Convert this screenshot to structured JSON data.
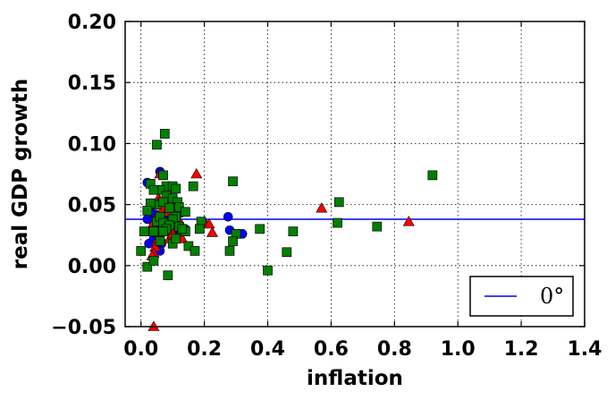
{
  "chart_data": {
    "type": "scatter",
    "xlabel": "inflation",
    "ylabel": "real GDP growth",
    "xlim": [
      -0.05,
      1.4
    ],
    "ylim": [
      -0.05,
      0.2
    ],
    "xticks": [
      0.0,
      0.2,
      0.4,
      0.6,
      0.8,
      1.0,
      1.2,
      1.4
    ],
    "yticks": [
      -0.05,
      0.0,
      0.05,
      0.1,
      0.15,
      0.2
    ],
    "xtick_labels": [
      "0.0",
      "0.2",
      "0.4",
      "0.6",
      "0.8",
      "1.0",
      "1.2",
      "1.4"
    ],
    "ytick_labels": [
      "−0.05",
      "0.00",
      "0.05",
      "0.10",
      "0.15",
      "0.20"
    ],
    "grid": true,
    "grid_style": "dotted",
    "legend_position": "lower right",
    "hline": {
      "y": 0.038,
      "color": "#0000ff",
      "label": "0°"
    },
    "series": [
      {
        "marker": "circle",
        "color": "#0000ff",
        "points": [
          [
            0.02,
            0.068
          ],
          [
            0.06,
            0.077
          ],
          [
            0.02,
            0.038
          ],
          [
            0.035,
            0.037
          ],
          [
            0.045,
            0.042
          ],
          [
            0.05,
            0.03
          ],
          [
            0.06,
            0.025
          ],
          [
            0.065,
            0.018
          ],
          [
            0.025,
            0.018
          ],
          [
            0.06,
            0.012
          ],
          [
            0.07,
            0.03
          ],
          [
            0.09,
            0.035
          ],
          [
            0.1,
            0.028
          ],
          [
            0.12,
            0.032
          ],
          [
            0.14,
            0.03
          ],
          [
            0.275,
            0.04
          ],
          [
            0.28,
            0.029
          ],
          [
            0.32,
            0.026
          ],
          [
            0.03,
            0.048
          ],
          [
            0.075,
            0.04
          ],
          [
            0.04,
            0.022
          ],
          [
            0.11,
            0.024
          ]
        ]
      },
      {
        "marker": "triangle",
        "color": "#ff0000",
        "points": [
          [
            0.06,
            0.075
          ],
          [
            0.055,
            0.055
          ],
          [
            0.06,
            0.053
          ],
          [
            0.065,
            0.05
          ],
          [
            0.07,
            0.047
          ],
          [
            0.08,
            0.044
          ],
          [
            0.05,
            0.04
          ],
          [
            0.04,
            0.035
          ],
          [
            0.045,
            0.03
          ],
          [
            0.05,
            0.027
          ],
          [
            0.06,
            0.024
          ],
          [
            0.05,
            0.02
          ],
          [
            0.045,
            0.015
          ],
          [
            0.04,
            0.01
          ],
          [
            0.035,
            0.008
          ],
          [
            0.07,
            0.032
          ],
          [
            0.08,
            0.028
          ],
          [
            0.09,
            0.022
          ],
          [
            0.1,
            0.026
          ],
          [
            0.11,
            0.031
          ],
          [
            0.115,
            0.043
          ],
          [
            0.12,
            0.037
          ],
          [
            0.13,
            0.03
          ],
          [
            0.13,
            0.022
          ],
          [
            0.175,
            0.075
          ],
          [
            0.2,
            0.036
          ],
          [
            0.215,
            0.034
          ],
          [
            0.225,
            0.027
          ],
          [
            0.57,
            0.047
          ],
          [
            0.845,
            0.036
          ],
          [
            0.04,
            -0.05
          ]
        ]
      },
      {
        "marker": "square",
        "color": "#008000",
        "points": [
          [
            0.075,
            0.108
          ],
          [
            0.05,
            0.099
          ],
          [
            0.07,
            0.074
          ],
          [
            0.165,
            0.065
          ],
          [
            0.29,
            0.069
          ],
          [
            0.92,
            0.074
          ],
          [
            0.03,
            0.067
          ],
          [
            0.08,
            0.065
          ],
          [
            0.1,
            0.065
          ],
          [
            0.11,
            0.063
          ],
          [
            0.06,
            0.062
          ],
          [
            0.04,
            0.062
          ],
          [
            0.08,
            0.057
          ],
          [
            0.1,
            0.055
          ],
          [
            0.115,
            0.052
          ],
          [
            0.05,
            0.05
          ],
          [
            0.07,
            0.052
          ],
          [
            0.03,
            0.051
          ],
          [
            0.12,
            0.048
          ],
          [
            0.14,
            0.044
          ],
          [
            0.09,
            0.047
          ],
          [
            0.11,
            0.04
          ],
          [
            0.1,
            0.038
          ],
          [
            0.05,
            0.036
          ],
          [
            0.06,
            0.04
          ],
          [
            0.07,
            0.035
          ],
          [
            0.09,
            0.033
          ],
          [
            0.12,
            0.032
          ],
          [
            0.14,
            0.028
          ],
          [
            0.08,
            0.03
          ],
          [
            0.04,
            0.028
          ],
          [
            0.01,
            0.028
          ],
          [
            0.06,
            0.02
          ],
          [
            0.1,
            0.018
          ],
          [
            0.15,
            0.016
          ],
          [
            0.19,
            0.036
          ],
          [
            0.185,
            0.03
          ],
          [
            0.17,
            0.012
          ],
          [
            0.0,
            0.012
          ],
          [
            0.02,
            -0.001
          ],
          [
            0.04,
            0.004
          ],
          [
            0.085,
            -0.008
          ],
          [
            0.28,
            0.012
          ],
          [
            0.3,
            0.026
          ],
          [
            0.29,
            0.02
          ],
          [
            0.375,
            0.03
          ],
          [
            0.4,
            -0.004
          ],
          [
            0.46,
            0.011
          ],
          [
            0.48,
            0.028
          ],
          [
            0.625,
            0.052
          ],
          [
            0.62,
            0.035
          ],
          [
            0.745,
            0.032
          ],
          [
            0.13,
            0.03
          ],
          [
            0.02,
            0.045
          ],
          [
            0.11,
            0.022
          ],
          [
            0.07,
            0.028
          ]
        ]
      }
    ]
  }
}
